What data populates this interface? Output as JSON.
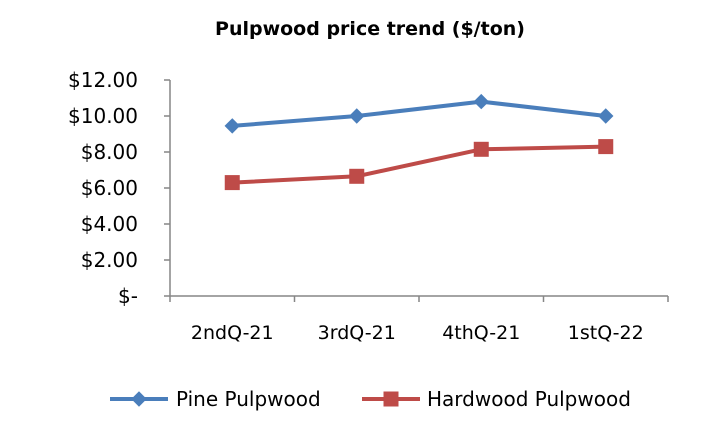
{
  "chart_data": {
    "type": "line",
    "title": "Pulpwood  price trend ($/ton)",
    "xlabel": "",
    "ylabel": "",
    "categories": [
      "2ndQ-21",
      "3rdQ-21",
      "4thQ-21",
      "1stQ-22"
    ],
    "ylim": [
      0,
      12
    ],
    "yticks": [
      0,
      2,
      4,
      6,
      8,
      10,
      12
    ],
    "ytick_labels": [
      "$-",
      "$2.00",
      "$4.00",
      "$6.00",
      "$8.00",
      "$10.00",
      "$12.00"
    ],
    "grid": false,
    "legend_position": "bottom",
    "series": [
      {
        "name": "Pine Pulpwood",
        "values": [
          9.45,
          10.0,
          10.8,
          10.0
        ],
        "color": "#4a7ebb",
        "marker": "diamond"
      },
      {
        "name": "Hardwood Pulpwood",
        "values": [
          6.3,
          6.65,
          8.15,
          8.3
        ],
        "color": "#be4b48",
        "marker": "square"
      }
    ]
  }
}
